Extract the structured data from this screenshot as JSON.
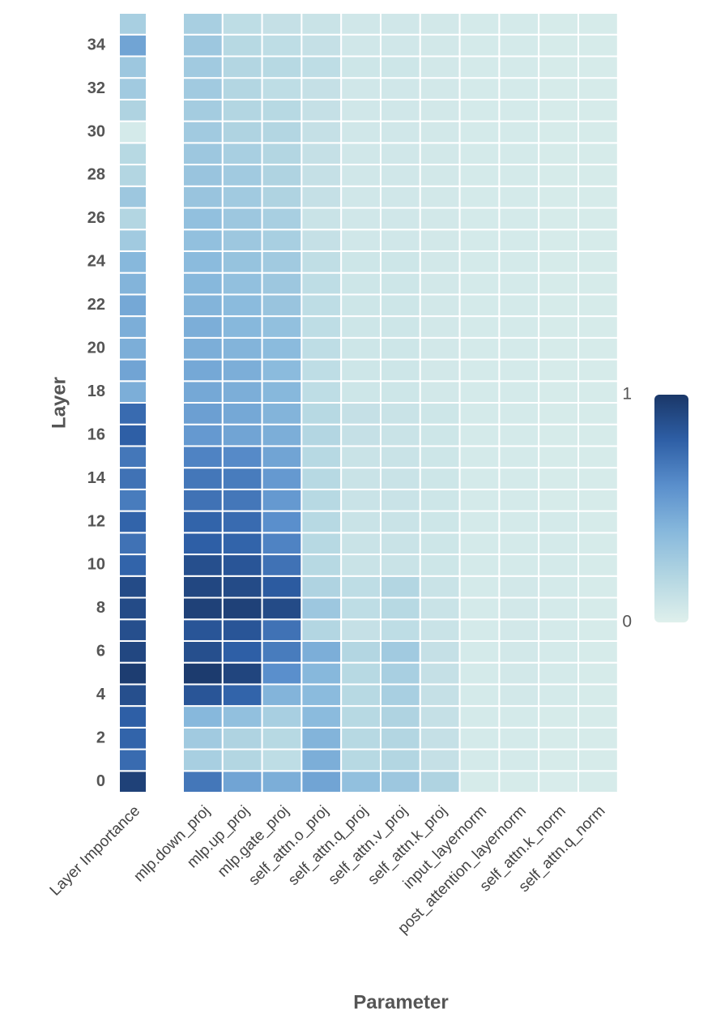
{
  "chart_data": {
    "type": "heatmap",
    "xlabel": "Parameter",
    "ylabel": "Layer",
    "columns": [
      "Layer Importance",
      "mlp.down_proj",
      "mlp.up_proj",
      "mlp.gate_proj",
      "self_attn.o_proj",
      "self_attn.q_proj",
      "self_attn.v_proj",
      "self_attn.k_proj",
      "input_layernorm",
      "post_attention_layernorm",
      "self_attn.k_norm",
      "self_attn.q_norm"
    ],
    "ylim": [
      -0.5,
      35.5
    ],
    "yticks": [
      0,
      2,
      4,
      6,
      8,
      10,
      12,
      14,
      16,
      18,
      20,
      22,
      24,
      26,
      28,
      30,
      32,
      34
    ],
    "zlim": [
      0,
      1
    ],
    "colorbar_ticks": [
      0,
      1
    ],
    "colorscale": [
      "#dff0ec",
      "#b3d6e2",
      "#87b8dc",
      "#5a8fcc",
      "#2e5fa6",
      "#1a3768"
    ],
    "values": [
      [
        0.95,
        0.7,
        0.5,
        0.45,
        0.5,
        0.35,
        0.3,
        0.22,
        0.04,
        0.04,
        0.03,
        0.04
      ],
      [
        0.75,
        0.25,
        0.2,
        0.15,
        0.45,
        0.18,
        0.2,
        0.12,
        0.05,
        0.05,
        0.04,
        0.04
      ],
      [
        0.78,
        0.28,
        0.22,
        0.18,
        0.42,
        0.18,
        0.2,
        0.12,
        0.05,
        0.05,
        0.04,
        0.04
      ],
      [
        0.8,
        0.4,
        0.35,
        0.25,
        0.38,
        0.18,
        0.22,
        0.12,
        0.05,
        0.05,
        0.04,
        0.04
      ],
      [
        0.88,
        0.85,
        0.78,
        0.42,
        0.38,
        0.18,
        0.25,
        0.12,
        0.05,
        0.06,
        0.05,
        0.04
      ],
      [
        0.97,
        0.98,
        0.93,
        0.6,
        0.4,
        0.18,
        0.25,
        0.12,
        0.05,
        0.06,
        0.05,
        0.04
      ],
      [
        0.92,
        0.88,
        0.8,
        0.68,
        0.45,
        0.2,
        0.28,
        0.12,
        0.05,
        0.06,
        0.05,
        0.04
      ],
      [
        0.88,
        0.85,
        0.85,
        0.72,
        0.2,
        0.12,
        0.15,
        0.1,
        0.05,
        0.06,
        0.05,
        0.04
      ],
      [
        0.9,
        0.95,
        0.95,
        0.9,
        0.3,
        0.15,
        0.18,
        0.1,
        0.05,
        0.06,
        0.05,
        0.04
      ],
      [
        0.9,
        0.92,
        0.9,
        0.82,
        0.22,
        0.15,
        0.2,
        0.1,
        0.05,
        0.06,
        0.05,
        0.04
      ],
      [
        0.78,
        0.88,
        0.85,
        0.72,
        0.18,
        0.1,
        0.1,
        0.08,
        0.05,
        0.05,
        0.05,
        0.04
      ],
      [
        0.72,
        0.8,
        0.78,
        0.65,
        0.18,
        0.1,
        0.1,
        0.08,
        0.05,
        0.05,
        0.05,
        0.04
      ],
      [
        0.78,
        0.78,
        0.75,
        0.6,
        0.18,
        0.1,
        0.1,
        0.08,
        0.05,
        0.05,
        0.05,
        0.04
      ],
      [
        0.68,
        0.72,
        0.7,
        0.55,
        0.18,
        0.1,
        0.1,
        0.08,
        0.05,
        0.05,
        0.04,
        0.04
      ],
      [
        0.72,
        0.7,
        0.68,
        0.55,
        0.18,
        0.1,
        0.1,
        0.08,
        0.05,
        0.05,
        0.04,
        0.04
      ],
      [
        0.7,
        0.65,
        0.62,
        0.5,
        0.18,
        0.1,
        0.1,
        0.08,
        0.05,
        0.05,
        0.04,
        0.04
      ],
      [
        0.8,
        0.55,
        0.5,
        0.45,
        0.2,
        0.12,
        0.1,
        0.08,
        0.05,
        0.05,
        0.04,
        0.04
      ],
      [
        0.75,
        0.52,
        0.48,
        0.42,
        0.18,
        0.12,
        0.1,
        0.08,
        0.05,
        0.05,
        0.04,
        0.04
      ],
      [
        0.45,
        0.48,
        0.45,
        0.4,
        0.15,
        0.08,
        0.08,
        0.06,
        0.05,
        0.05,
        0.04,
        0.04
      ],
      [
        0.5,
        0.48,
        0.45,
        0.38,
        0.15,
        0.08,
        0.08,
        0.06,
        0.05,
        0.05,
        0.04,
        0.04
      ],
      [
        0.45,
        0.45,
        0.42,
        0.38,
        0.15,
        0.08,
        0.08,
        0.06,
        0.05,
        0.05,
        0.04,
        0.04
      ],
      [
        0.45,
        0.45,
        0.4,
        0.35,
        0.15,
        0.08,
        0.08,
        0.06,
        0.05,
        0.05,
        0.04,
        0.04
      ],
      [
        0.48,
        0.42,
        0.38,
        0.32,
        0.15,
        0.08,
        0.08,
        0.06,
        0.05,
        0.05,
        0.04,
        0.04
      ],
      [
        0.42,
        0.4,
        0.35,
        0.3,
        0.15,
        0.08,
        0.08,
        0.06,
        0.05,
        0.05,
        0.04,
        0.04
      ],
      [
        0.4,
        0.38,
        0.33,
        0.28,
        0.14,
        0.08,
        0.08,
        0.06,
        0.05,
        0.05,
        0.04,
        0.04
      ],
      [
        0.28,
        0.35,
        0.3,
        0.25,
        0.12,
        0.07,
        0.07,
        0.06,
        0.05,
        0.05,
        0.04,
        0.04
      ],
      [
        0.2,
        0.35,
        0.3,
        0.25,
        0.1,
        0.07,
        0.07,
        0.06,
        0.05,
        0.05,
        0.04,
        0.04
      ],
      [
        0.3,
        0.32,
        0.28,
        0.22,
        0.12,
        0.07,
        0.07,
        0.06,
        0.05,
        0.05,
        0.04,
        0.04
      ],
      [
        0.2,
        0.32,
        0.28,
        0.22,
        0.12,
        0.07,
        0.07,
        0.06,
        0.05,
        0.05,
        0.04,
        0.04
      ],
      [
        0.18,
        0.3,
        0.25,
        0.2,
        0.12,
        0.07,
        0.07,
        0.06,
        0.05,
        0.05,
        0.04,
        0.04
      ],
      [
        0.05,
        0.28,
        0.22,
        0.2,
        0.12,
        0.07,
        0.07,
        0.06,
        0.05,
        0.05,
        0.04,
        0.04
      ],
      [
        0.22,
        0.27,
        0.2,
        0.18,
        0.12,
        0.07,
        0.07,
        0.06,
        0.05,
        0.05,
        0.04,
        0.04
      ],
      [
        0.28,
        0.28,
        0.2,
        0.15,
        0.12,
        0.07,
        0.07,
        0.06,
        0.05,
        0.05,
        0.04,
        0.04
      ],
      [
        0.3,
        0.28,
        0.2,
        0.18,
        0.15,
        0.08,
        0.08,
        0.06,
        0.05,
        0.05,
        0.04,
        0.04
      ],
      [
        0.5,
        0.3,
        0.18,
        0.15,
        0.12,
        0.07,
        0.07,
        0.06,
        0.05,
        0.05,
        0.04,
        0.04
      ],
      [
        0.25,
        0.25,
        0.15,
        0.12,
        0.1,
        0.07,
        0.07,
        0.06,
        0.05,
        0.05,
        0.04,
        0.04
      ]
    ]
  }
}
